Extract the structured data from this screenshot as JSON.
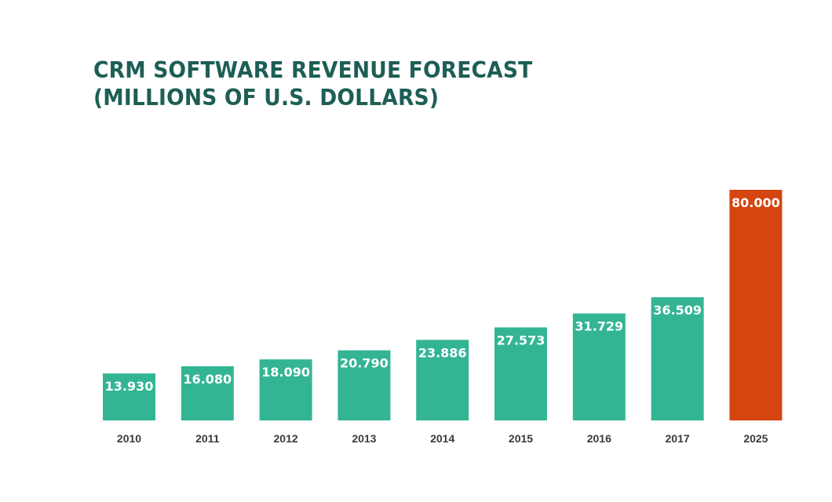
{
  "chart_data": {
    "type": "bar",
    "title_lines": [
      "CRM SOFTWARE REVENUE FORECAST",
      "(MILLIONS OF U.S. DOLLARS)"
    ],
    "xlabel": "",
    "ylabel": "",
    "categories": [
      "2010",
      "2011",
      "2012",
      "2013",
      "2014",
      "2015",
      "2016",
      "2017",
      "2025"
    ],
    "values": [
      13.93,
      16.08,
      18.09,
      20.79,
      23.886,
      27.573,
      31.729,
      36.509,
      80.0
    ],
    "value_labels": [
      "13.930",
      "16.080",
      "18.090",
      "20.790",
      "23.886",
      "27.573",
      "31.729",
      "36.509",
      "80.000"
    ],
    "bar_colors": [
      "#33b594",
      "#33b594",
      "#33b594",
      "#33b594",
      "#33b594",
      "#33b594",
      "#33b594",
      "#33b594",
      "#d4450f"
    ],
    "highlight_category": "2025",
    "grid": false,
    "legend": "none",
    "ylim": [
      0,
      80
    ]
  },
  "colors": {
    "title": "#1d5e55",
    "bar": "#33b594",
    "forecast_bar": "#d4450f",
    "value_label": "#ffffff",
    "tick_label": "#3a3a3a"
  }
}
